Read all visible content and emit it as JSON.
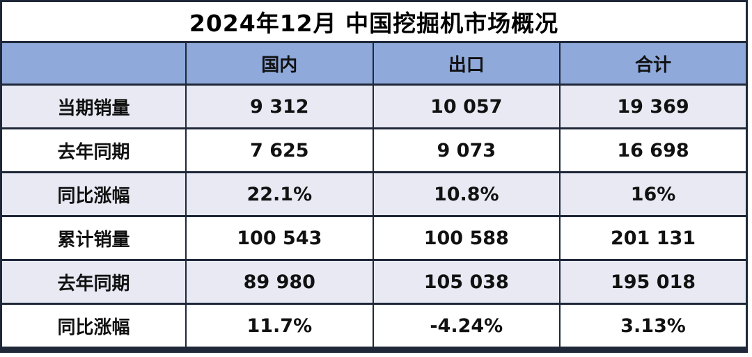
{
  "title": "2024年12月 中国挖掘机市场概况",
  "chart_data": {
    "type": "table",
    "title": "2024年12月 中国挖掘机市场概况",
    "columns": [
      "",
      "国内",
      "出口",
      "合计"
    ],
    "rows": [
      {
        "label": "当期销量",
        "values": [
          "9 312",
          "10 057",
          "19 369"
        ]
      },
      {
        "label": "去年同期",
        "values": [
          "7 625",
          "9 073",
          "16 698"
        ]
      },
      {
        "label": "同比涨幅",
        "values": [
          "22.1%",
          "10.8%",
          "16%"
        ]
      },
      {
        "label": "累计销量",
        "values": [
          "100 543",
          "100 588",
          "201 131"
        ]
      },
      {
        "label": "去年同期",
        "values": [
          "89 980",
          "105 038",
          "195 018"
        ]
      },
      {
        "label": "同比涨幅",
        "values": [
          "11.7%",
          "-4.24%",
          "3.13%"
        ]
      }
    ]
  },
  "colors": {
    "header_bg": "#8FA9DB",
    "stripe_bg": "#E8E9F3",
    "border": "#1F2838",
    "title_text": "#000000",
    "cell_text": "#111111"
  }
}
